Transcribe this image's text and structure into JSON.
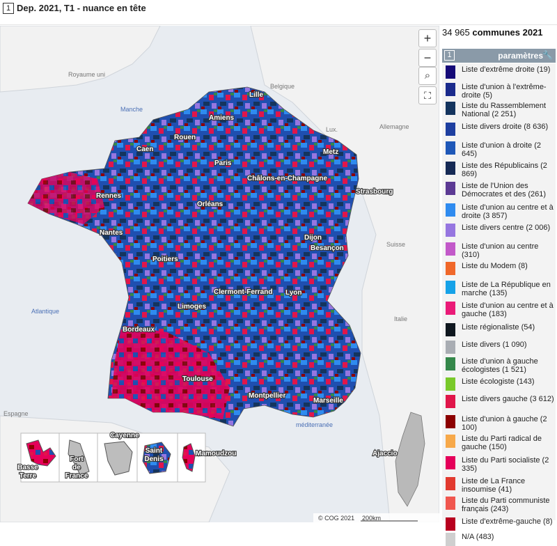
{
  "header": {
    "num": "1",
    "title": "Dep. 2021, T1 - nuance en tête"
  },
  "controls": {
    "zoom_in": "+",
    "zoom_out": "−",
    "search": "⌕",
    "fullscreen": "⛶"
  },
  "panel": {
    "count_number": "34 965",
    "count_label": " communes 2021",
    "params_num": "1",
    "params_label": "paramètres",
    "wrench": "🔧"
  },
  "legend": [
    {
      "label": "Liste d'extrême droite (19)",
      "color": "#150a78"
    },
    {
      "label": "Liste d'union à l'extrême-droite (5)",
      "color": "#1a2a8c"
    },
    {
      "label": "Liste du Rassemblement National (2 251)",
      "color": "#14345e"
    },
    {
      "label": "Liste divers droite (8 636)",
      "color": "#1e3fa0"
    },
    {
      "label": "Liste d'union à droite (2 645)",
      "color": "#1f58b8"
    },
    {
      "label": "Liste des Républicains (2 869)",
      "color": "#162a55"
    },
    {
      "label": "Liste de l'Union des Démocrates et des (261)",
      "color": "#5c3a94"
    },
    {
      "label": "Liste d'union au centre et à droite (3 857)",
      "color": "#2f8bef"
    },
    {
      "label": "Liste divers centre (2 006)",
      "color": "#9676e0"
    },
    {
      "label": "Liste d'union au centre (310)",
      "color": "#c259c9"
    },
    {
      "label": "Liste du Modem (8)",
      "color": "#f0682a"
    },
    {
      "label": "Liste de La République en marche (135)",
      "color": "#16a2e8"
    },
    {
      "label": "Liste d'union au centre et à gauche (183)",
      "color": "#ea1b78"
    },
    {
      "label": "Liste régionaliste (54)",
      "color": "#101820"
    },
    {
      "label": "Liste divers (1 090)",
      "color": "#a9adb3"
    },
    {
      "label": "Liste d'union à gauche écologistes (1 521)",
      "color": "#34874a"
    },
    {
      "label": "Liste écologiste (143)",
      "color": "#79c92a"
    },
    {
      "label": "Liste divers gauche (3 612)",
      "color": "#e0164a"
    },
    {
      "label": "Liste d'union à gauche (2 100)",
      "color": "#8c0000"
    },
    {
      "label": "Liste du Parti radical de gauche (150)",
      "color": "#f7a94a"
    },
    {
      "label": "Liste du Parti socialiste (2 335)",
      "color": "#e5005a"
    },
    {
      "label": "Liste de La France insoumise (41)",
      "color": "#e23a2f"
    },
    {
      "label": "Liste du Parti communiste français (243)",
      "color": "#f0574f"
    },
    {
      "label": "Liste d'extrême-gauche (8)",
      "color": "#b8001f"
    },
    {
      "label": "N/A (483)",
      "color": "#cfcfcf"
    }
  ],
  "map": {
    "countries": {
      "uk": "Royaume uni",
      "be": "Belgique",
      "lux": "Lux.",
      "de": "Allemagne",
      "ch": "Suisse",
      "it": "Italie",
      "es": "Espagne"
    },
    "seas": {
      "manche": "Manche",
      "atlantique": "Atlantique",
      "med": "méditerranée"
    },
    "cities": {
      "lille": "Lille",
      "amiens": "Amiens",
      "rouen": "Rouen",
      "caen": "Caen",
      "metz": "Metz",
      "paris": "Paris",
      "chalons": "Châlons-en-Champagne",
      "strasbourg": "Strasbourg",
      "rennes": "Rennes",
      "orleans": "Orléans",
      "nantes": "Nantes",
      "dijon": "Dijon",
      "besancon": "Besançon",
      "poitiers": "Poitiers",
      "clermont": "Clermont-Ferrand",
      "lyon": "Lyon",
      "limoges": "Limoges",
      "bordeaux": "Bordeaux",
      "toulouse": "Toulouse",
      "montpellier": "Montpellier",
      "marseille": "Marseille",
      "ajaccio": "Ajaccio"
    },
    "insets": {
      "basse_terre": "Basse Terre",
      "fort_de_france": "Fort de France",
      "cayenne": "Cayenne",
      "saint_denis": "Saint Denis",
      "mamoudzou": "Mamoudzou"
    },
    "attribution": "© COG 2021",
    "scale": "200km"
  }
}
